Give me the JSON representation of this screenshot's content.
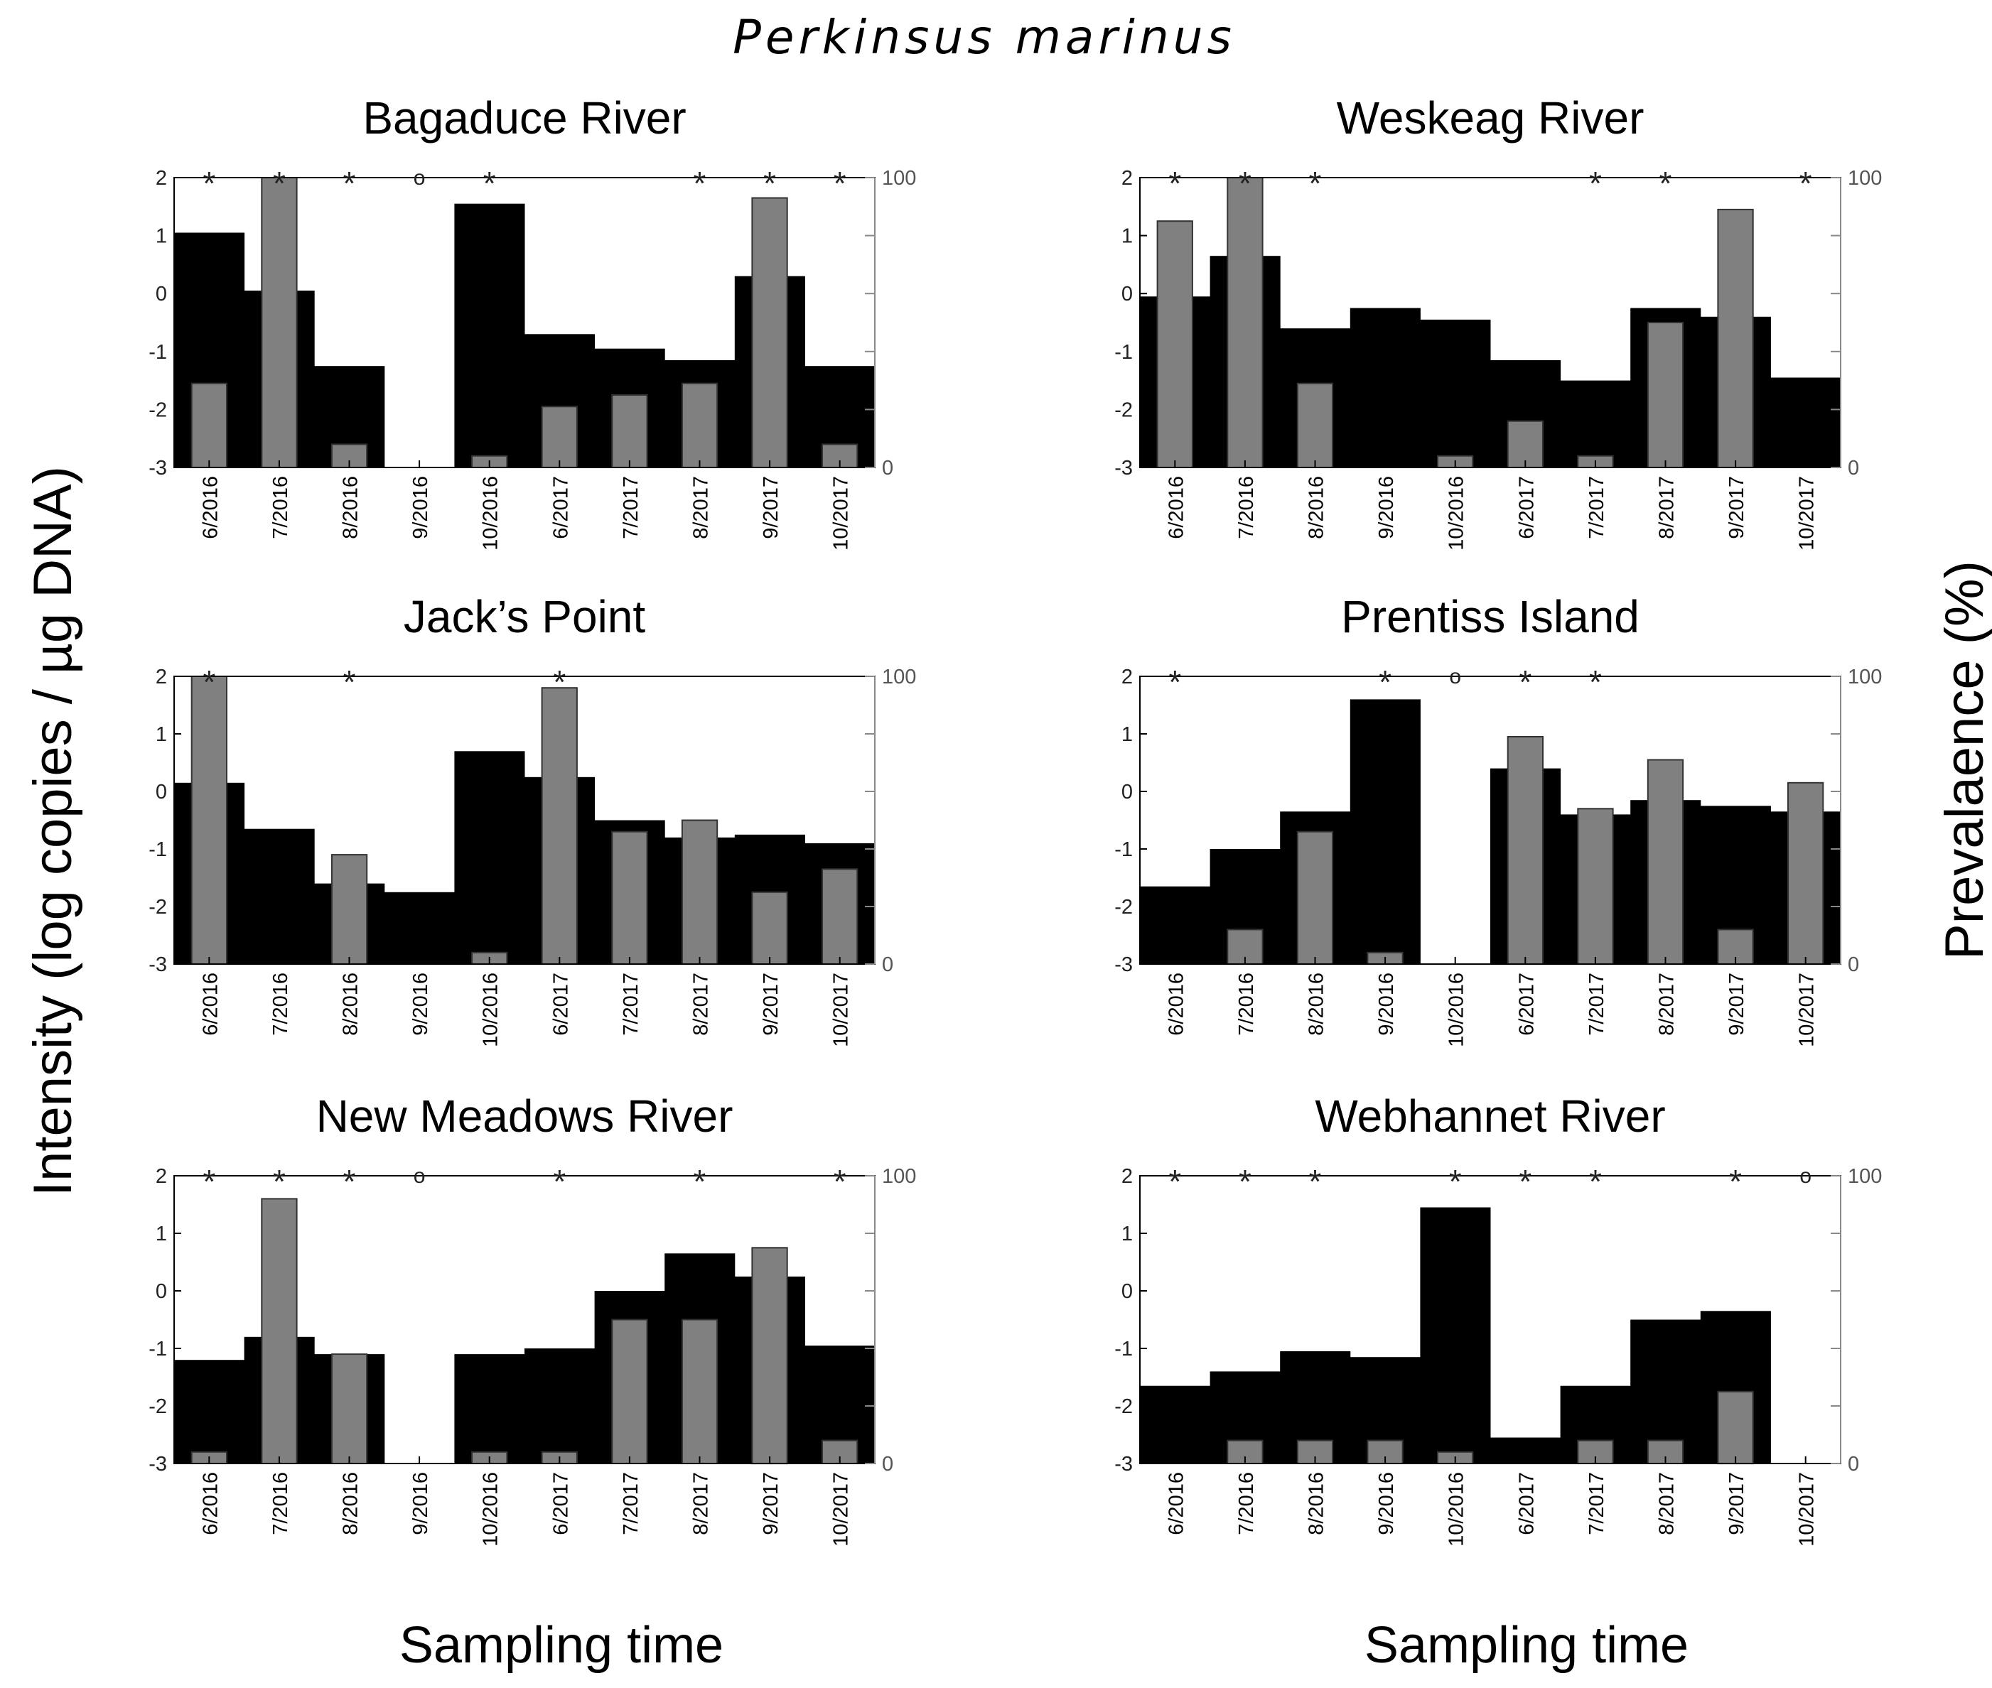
{
  "figure": {
    "suptitle": "Perkinsus marinus",
    "ylabel_left": "Intensity (log copies / µg DNA)",
    "ylabel_right": "Prevalaence (%)",
    "xlabels": [
      "Sampling time",
      "Sampling time"
    ]
  },
  "colors": {
    "intensity": "#000000",
    "prevalence": "#808080",
    "right_axis": "#888888"
  },
  "chart_data": [
    {
      "type": "bar",
      "title": "Bagaduce River",
      "categories": [
        "6/2016",
        "7/2016",
        "8/2016",
        "9/2016",
        "10/2016",
        "6/2017",
        "7/2017",
        "8/2017",
        "9/2017",
        "10/2017"
      ],
      "left_ylim": [
        -3,
        2
      ],
      "left_yticks": [
        "2",
        "1",
        "0",
        "-1",
        "-2",
        "-3"
      ],
      "right_ylim": [
        0,
        100
      ],
      "right_yticks": [
        "100",
        "0"
      ],
      "series": [
        {
          "values": [
            1.05,
            0.05,
            -1.25,
            null,
            1.55,
            -0.7,
            -0.95,
            -1.15,
            0.3,
            -1.25
          ]
        },
        {
          "values": [
            29,
            100,
            8,
            0,
            4,
            21,
            25,
            29,
            93,
            8
          ]
        }
      ],
      "markers": [
        "*",
        "*",
        "*",
        "o",
        "*",
        "",
        "",
        "*",
        "*",
        "*"
      ]
    },
    {
      "type": "bar",
      "title": "Weskeag River",
      "categories": [
        "6/2016",
        "7/2016",
        "8/2016",
        "9/2016",
        "10/2016",
        "6/2017",
        "7/2017",
        "8/2017",
        "9/2017",
        "10/2017"
      ],
      "left_ylim": [
        -3,
        2
      ],
      "left_yticks": [
        "2",
        "1",
        "0",
        "-1",
        "-2",
        "-3"
      ],
      "right_ylim": [
        0,
        100
      ],
      "right_yticks": [
        "100",
        "0"
      ],
      "series": [
        {
          "values": [
            -0.05,
            0.65,
            -0.6,
            -0.25,
            -0.45,
            -1.15,
            -1.5,
            -0.25,
            -0.4,
            -1.45
          ]
        },
        {
          "values": [
            85,
            100,
            29,
            0,
            4,
            16,
            4,
            50,
            89,
            0
          ]
        }
      ],
      "markers": [
        "*",
        "*",
        "*",
        "",
        "",
        "",
        "*",
        "*",
        "",
        "*"
      ]
    },
    {
      "type": "bar",
      "title": "Jack’s  Point",
      "categories": [
        "6/2016",
        "7/2016",
        "8/2016",
        "9/2016",
        "10/2016",
        "6/2017",
        "7/2017",
        "8/2017",
        "9/2017",
        "10/2017"
      ],
      "left_ylim": [
        -3,
        2
      ],
      "left_yticks": [
        "2",
        "1",
        "0",
        "-1",
        "-2",
        "-3"
      ],
      "right_ylim": [
        0,
        100
      ],
      "right_yticks": [
        "100",
        "0"
      ],
      "series": [
        {
          "values": [
            0.15,
            -0.65,
            -1.6,
            -1.75,
            0.7,
            0.25,
            -0.5,
            -0.8,
            -0.75,
            -0.9
          ]
        },
        {
          "values": [
            100,
            0,
            38,
            0,
            4,
            96,
            46,
            50,
            25,
            33
          ]
        }
      ],
      "markers": [
        "*",
        "",
        "*",
        "",
        "",
        "*",
        "",
        "",
        "",
        ""
      ]
    },
    {
      "type": "bar",
      "title": "Prentiss Island",
      "categories": [
        "6/2016",
        "7/2016",
        "8/2016",
        "9/2016",
        "10/2016",
        "6/2017",
        "7/2017",
        "8/2017",
        "9/2017",
        "10/2017"
      ],
      "left_ylim": [
        -3,
        2
      ],
      "left_yticks": [
        "2",
        "1",
        "0",
        "-1",
        "-2",
        "-3"
      ],
      "right_ylim": [
        0,
        100
      ],
      "right_yticks": [
        "100",
        "0"
      ],
      "series": [
        {
          "values": [
            -1.65,
            -1.0,
            -0.35,
            1.6,
            null,
            0.4,
            -0.4,
            -0.15,
            -0.25,
            -0.35
          ]
        },
        {
          "values": [
            0,
            12,
            46,
            4,
            0,
            79,
            54,
            71,
            12,
            63
          ]
        }
      ],
      "markers": [
        "*",
        "",
        "",
        "*",
        "o",
        "*",
        "*",
        "",
        "",
        ""
      ]
    },
    {
      "type": "bar",
      "title": "New  Meadows River",
      "categories": [
        "6/2016",
        "7/2016",
        "8/2016",
        "9/2016",
        "10/2016",
        "6/2017",
        "7/2017",
        "8/2017",
        "9/2017",
        "10/2017"
      ],
      "left_ylim": [
        -3,
        2
      ],
      "left_yticks": [
        "2",
        "1",
        "0",
        "-1",
        "-2",
        "-3"
      ],
      "right_ylim": [
        0,
        100
      ],
      "right_yticks": [
        "100",
        "0"
      ],
      "series": [
        {
          "values": [
            -1.2,
            -0.8,
            -1.1,
            null,
            -1.1,
            -1.0,
            0.0,
            0.65,
            0.25,
            -0.95
          ]
        },
        {
          "values": [
            4,
            92,
            38,
            0,
            4,
            4,
            50,
            50,
            75,
            8
          ]
        }
      ],
      "markers": [
        "*",
        "*",
        "*",
        "o",
        "",
        "*",
        "",
        "*",
        "",
        "*"
      ]
    },
    {
      "type": "bar",
      "title": "Webhannet River",
      "categories": [
        "6/2016",
        "7/2016",
        "8/2016",
        "9/2016",
        "10/2016",
        "6/2017",
        "7/2017",
        "8/2017",
        "9/2017",
        "10/2017"
      ],
      "left_ylim": [
        -3,
        2
      ],
      "left_yticks": [
        "2",
        "1",
        "0",
        "-1",
        "-2",
        "-3"
      ],
      "right_ylim": [
        0,
        100
      ],
      "right_yticks": [
        "100",
        "0"
      ],
      "series": [
        {
          "values": [
            -1.65,
            -1.4,
            -1.05,
            -1.15,
            1.45,
            -2.55,
            -1.65,
            -0.5,
            -0.35,
            null
          ]
        },
        {
          "values": [
            0,
            8,
            8,
            8,
            4,
            0,
            8,
            8,
            25,
            0
          ]
        }
      ],
      "markers": [
        "*",
        "*",
        "*",
        "",
        "*",
        "*",
        "*",
        "",
        "*",
        "o"
      ]
    }
  ]
}
